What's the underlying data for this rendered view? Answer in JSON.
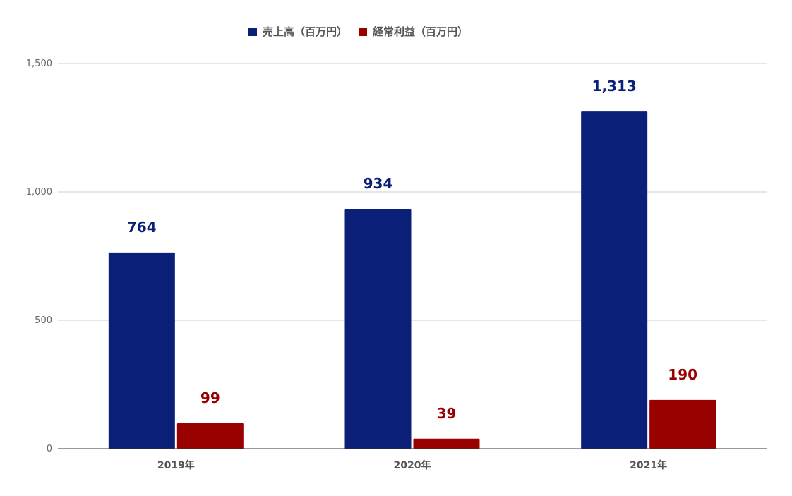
{
  "chart_data": {
    "type": "bar",
    "categories": [
      "2019年",
      "2020年",
      "2021年"
    ],
    "series": [
      {
        "name": "売上高（百万円）",
        "values": [
          764,
          934,
          1313
        ],
        "color": "#0a1f78"
      },
      {
        "name": "経常利益（百万円）",
        "values": [
          99,
          39,
          190
        ],
        "color": "#990000"
      }
    ],
    "data_labels": [
      [
        "764",
        "934",
        "1,313"
      ],
      [
        "99",
        "39",
        "190"
      ]
    ],
    "title": "",
    "xlabel": "",
    "ylabel": "",
    "ylim": [
      0,
      1500
    ],
    "yticks": [
      0,
      500,
      1000,
      1500
    ],
    "ytick_labels": [
      "0",
      "500",
      "1,000",
      "1,500"
    ],
    "grid": true,
    "legend_position": "top"
  }
}
